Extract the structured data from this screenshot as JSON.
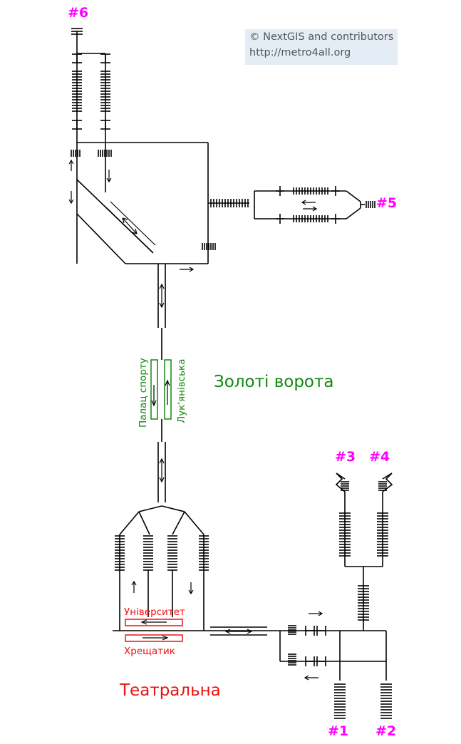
{
  "credit": {
    "line1": "© NextGIS and contributors",
    "line2": "http://metro4all.org"
  },
  "stations": {
    "zoloti_vorota": {
      "name": "Золоті ворота",
      "color": "#118811",
      "platforms": [
        "Палац спорту",
        "Лук'янівська"
      ]
    },
    "teatralna": {
      "name": "Театральна",
      "color": "#ee1111",
      "platforms": [
        "Університет",
        "Хрещатик"
      ]
    }
  },
  "exits": {
    "color": "#ff00ff",
    "labels": [
      "#1",
      "#2",
      "#3",
      "#4",
      "#5",
      "#6"
    ]
  }
}
